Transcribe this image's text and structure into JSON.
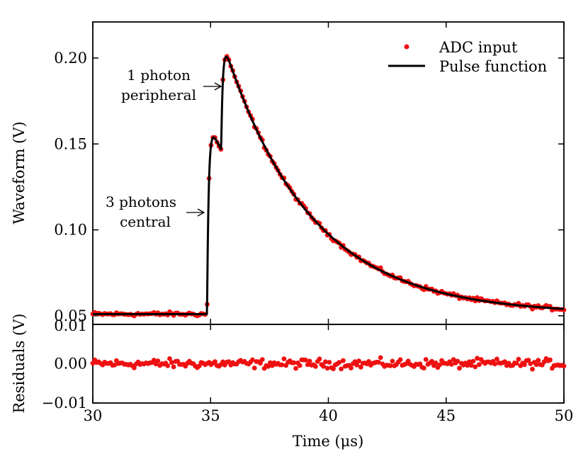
{
  "chart_data": [
    {
      "type": "line",
      "panel": "main",
      "title": "",
      "xlabel": "",
      "ylabel": "Waveform (V)",
      "xlim": [
        30,
        50
      ],
      "ylim": [
        0.045,
        0.221
      ],
      "xticks": [
        30,
        35,
        40,
        45,
        50
      ],
      "yticks": [
        0.05,
        0.1,
        0.15,
        0.2
      ],
      "ytick_labels": [
        "0.05",
        "0.10",
        "0.15",
        "0.20"
      ],
      "grid": false,
      "legend": {
        "position": "top-right",
        "entries": [
          {
            "label": "ADC input",
            "style": "red-dots",
            "color": "#ee1111"
          },
          {
            "label": "Pulse function",
            "style": "black-line",
            "color": "#000000"
          }
        ]
      },
      "series": [
        {
          "name": "Pulse function",
          "color": "#000000",
          "baseline": 0.051,
          "t1": 34.85,
          "a1": 0.113,
          "t2": 35.45,
          "a2": 0.066,
          "rise_time_us": 0.07,
          "decay_time_us": 3.65
        },
        {
          "name": "ADC input",
          "color": "#ee1111",
          "x_start": 30.0,
          "x_end": 50.0,
          "n_points": 240,
          "noise_amplitude_V": 0.001
        }
      ],
      "annotations": [
        {
          "lines": [
            "1 photon",
            "peripheral"
          ],
          "arrow_to": [
            35.35,
            0.17
          ]
        },
        {
          "lines": [
            "3 photons",
            "central"
          ],
          "arrow_to": [
            34.9,
            0.1
          ]
        }
      ]
    },
    {
      "type": "scatter",
      "panel": "residuals",
      "xlabel": "Time (μs)",
      "ylabel": "Residuals (V)",
      "xlim": [
        30,
        50
      ],
      "ylim": [
        -0.01,
        0.01
      ],
      "xticks": [
        30,
        35,
        40,
        45,
        50
      ],
      "xtick_labels": [
        "30",
        "35",
        "40",
        "45",
        "50"
      ],
      "yticks": [
        -0.01,
        0.0,
        0.01
      ],
      "ytick_labels": [
        "−0.01",
        "0.00",
        "0.01"
      ],
      "grid": false,
      "series": [
        {
          "name": "Residuals",
          "color": "#ee1111",
          "mean": 0.0,
          "noise_amplitude_V": 0.001
        }
      ]
    }
  ]
}
